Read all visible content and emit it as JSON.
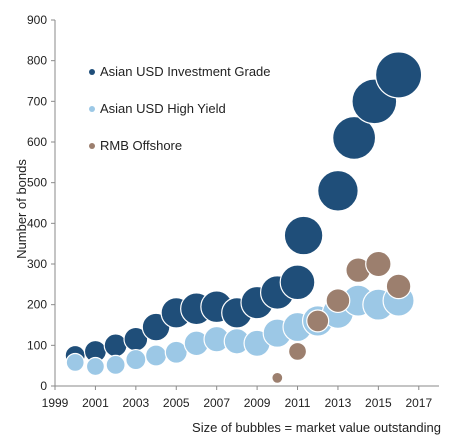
{
  "chart_data": {
    "type": "scatter",
    "title": "",
    "xlabel": "",
    "ylabel": "Number of bonds",
    "footnote": "Size of bubbles = market value outstanding",
    "xlim": [
      1999,
      2018
    ],
    "ylim": [
      0,
      900
    ],
    "xticks": [
      "1999",
      "2001",
      "2003",
      "2005",
      "2007",
      "2009",
      "2011",
      "2013",
      "2015",
      "2017"
    ],
    "yticks": [
      "0",
      "100",
      "200",
      "300",
      "400",
      "500",
      "600",
      "700",
      "800",
      "900"
    ],
    "grid": false,
    "legend_position": "top-left",
    "series": [
      {
        "name": "Asian USD Investment Grade",
        "color": "#1f4e79",
        "points": [
          {
            "x": 2000,
            "y": 75,
            "size": 1.0
          },
          {
            "x": 2001,
            "y": 85,
            "size": 1.2
          },
          {
            "x": 2002,
            "y": 100,
            "size": 1.3
          },
          {
            "x": 2003,
            "y": 115,
            "size": 1.4
          },
          {
            "x": 2004,
            "y": 145,
            "size": 1.9
          },
          {
            "x": 2005,
            "y": 180,
            "size": 2.3
          },
          {
            "x": 2006,
            "y": 190,
            "size": 2.5
          },
          {
            "x": 2007,
            "y": 195,
            "size": 2.5
          },
          {
            "x": 2008,
            "y": 180,
            "size": 2.3
          },
          {
            "x": 2009,
            "y": 205,
            "size": 2.6
          },
          {
            "x": 2010,
            "y": 230,
            "size": 2.8
          },
          {
            "x": 2011,
            "y": 255,
            "size": 3.0
          },
          {
            "x": 2011.3,
            "y": 370,
            "size": 3.7
          },
          {
            "x": 2013,
            "y": 480,
            "size": 4.1
          },
          {
            "x": 2013.8,
            "y": 610,
            "size": 4.6
          },
          {
            "x": 2014.8,
            "y": 700,
            "size": 5.0
          },
          {
            "x": 2016,
            "y": 765,
            "size": 5.3
          }
        ]
      },
      {
        "name": "Asian USD High Yield",
        "color": "#9cc8e6",
        "points": [
          {
            "x": 2000,
            "y": 58,
            "size": 0.8
          },
          {
            "x": 2001,
            "y": 48,
            "size": 0.8
          },
          {
            "x": 2002,
            "y": 52,
            "size": 0.9
          },
          {
            "x": 2003,
            "y": 65,
            "size": 1.0
          },
          {
            "x": 2004,
            "y": 75,
            "size": 1.1
          },
          {
            "x": 2005,
            "y": 83,
            "size": 1.2
          },
          {
            "x": 2006,
            "y": 105,
            "size": 1.5
          },
          {
            "x": 2007,
            "y": 115,
            "size": 1.6
          },
          {
            "x": 2008,
            "y": 110,
            "size": 1.6
          },
          {
            "x": 2009,
            "y": 105,
            "size": 1.7
          },
          {
            "x": 2010,
            "y": 130,
            "size": 2.0
          },
          {
            "x": 2011,
            "y": 145,
            "size": 2.1
          },
          {
            "x": 2012,
            "y": 160,
            "size": 2.3
          },
          {
            "x": 2013,
            "y": 180,
            "size": 2.4
          },
          {
            "x": 2014,
            "y": 210,
            "size": 2.4
          },
          {
            "x": 2015,
            "y": 200,
            "size": 2.4
          },
          {
            "x": 2016,
            "y": 210,
            "size": 2.4
          }
        ]
      },
      {
        "name": "RMB Offshore",
        "color": "#9c7f6e",
        "points": [
          {
            "x": 2010,
            "y": 20,
            "size": 0.3
          },
          {
            "x": 2011,
            "y": 85,
            "size": 0.8
          },
          {
            "x": 2012,
            "y": 160,
            "size": 1.2
          },
          {
            "x": 2013,
            "y": 210,
            "size": 1.4
          },
          {
            "x": 2014,
            "y": 285,
            "size": 1.5
          },
          {
            "x": 2015,
            "y": 300,
            "size": 1.6
          },
          {
            "x": 2016,
            "y": 245,
            "size": 1.5
          }
        ]
      }
    ]
  }
}
